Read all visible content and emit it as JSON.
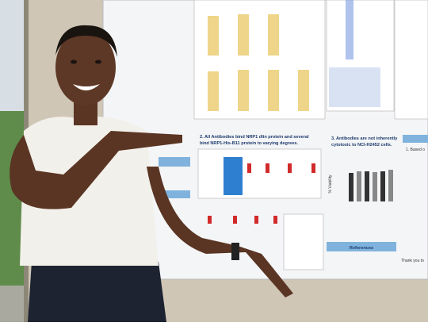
{
  "poster": {
    "sections": [
      {
        "lines": [
          "2. All Antibodies bind NRP1 dlin protein and several",
          "bind NRP1-His-B11 protein to varying degrees."
        ]
      },
      {
        "lines": [
          "3. Antibodies are not inherently",
          "cytotoxic to NCI-H2452 cells."
        ]
      },
      {
        "lines": [
          "References"
        ]
      }
    ],
    "axis_label": "% Viability",
    "right_column": [
      "1. Based o",
      "Thank you to"
    ]
  }
}
